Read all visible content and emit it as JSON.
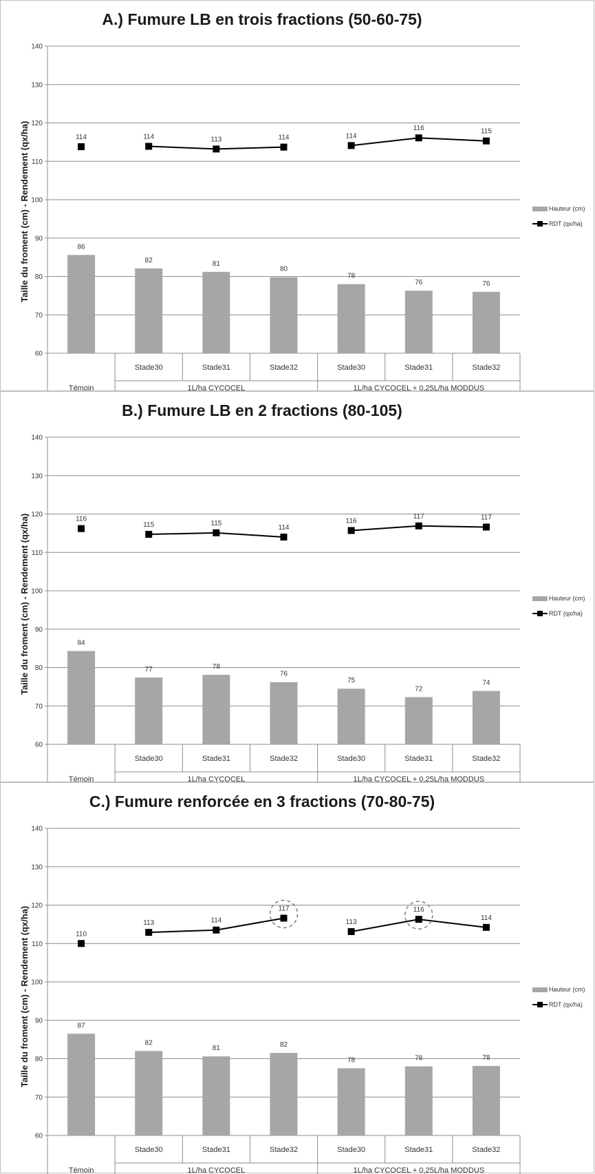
{
  "chart_data": [
    {
      "type": "bar+line",
      "title": "A.)  Fumure LB en trois fractions (50-60-75)",
      "ylabel": "Taille du froment (cm) - Rendement (qx/ha)",
      "ylim": [
        60,
        140
      ],
      "yticks": [
        "60",
        "70",
        "80",
        "90",
        "100",
        "110",
        "120",
        "130",
        "140"
      ],
      "categories": [
        "",
        "Stade30",
        "Stade31",
        "Stade32",
        "Stade30",
        "Stade31",
        "Stade32"
      ],
      "groups": [
        {
          "label": "Témoin",
          "span": 1
        },
        {
          "label": "1L/ha CYCOCEL",
          "span": 3
        },
        {
          "label": "1L/ha CYCOCEL + 0,25L/ha MODDUS",
          "span": 3
        }
      ],
      "series": [
        {
          "name": "Hauteur (cm)",
          "kind": "bar",
          "color": "#a6a6a6",
          "values": [
            85.6,
            82.1,
            81.2,
            79.8,
            78.0,
            76.3,
            76.0
          ],
          "labels": [
            "86",
            "82",
            "81",
            "80",
            "78",
            "76",
            "76"
          ]
        },
        {
          "name": "RDT (qx/ha)",
          "kind": "line",
          "color": "#000000",
          "values": [
            113.8,
            113.9,
            113.2,
            113.7,
            114.1,
            116.1,
            115.3
          ],
          "labels": [
            "114",
            "114",
            "113",
            "114",
            "114",
            "116",
            "115"
          ]
        }
      ],
      "highlight": [],
      "grid": true,
      "legend": "right"
    },
    {
      "type": "bar+line",
      "title": "B.)  Fumure LB en 2 fractions (80-105)",
      "ylabel": "Taille du froment (cm) - Rendement (qx/ha)",
      "ylim": [
        60,
        140
      ],
      "yticks": [
        "60",
        "70",
        "80",
        "90",
        "100",
        "110",
        "120",
        "130",
        "140"
      ],
      "categories": [
        "",
        "Stade30",
        "Stade31",
        "Stade32",
        "Stade30",
        "Stade31",
        "Stade32"
      ],
      "groups": [
        {
          "label": "Témoin",
          "span": 1
        },
        {
          "label": "1L/ha CYCOCEL",
          "span": 3
        },
        {
          "label": "1L/ha CYCOCEL + 0,25L/ha MODDUS",
          "span": 3
        }
      ],
      "series": [
        {
          "name": "Hauteur (cm)",
          "kind": "bar",
          "color": "#a6a6a6",
          "values": [
            84.3,
            77.4,
            78.1,
            76.2,
            74.5,
            72.3,
            73.9
          ],
          "labels": [
            "84",
            "77",
            "78",
            "76",
            "75",
            "72",
            "74"
          ]
        },
        {
          "name": "RDT (qx/ha)",
          "kind": "line",
          "color": "#000000",
          "values": [
            116.2,
            114.7,
            115.1,
            114.0,
            115.7,
            116.9,
            116.6
          ],
          "labels": [
            "116",
            "115",
            "115",
            "114",
            "116",
            "117",
            "117"
          ]
        }
      ],
      "highlight": [],
      "grid": true,
      "legend": "right"
    },
    {
      "type": "bar+line",
      "title": "C.)  Fumure renforcée en 3 fractions (70-80-75)",
      "ylabel": "Taille du froment (cm) - Rendement (qx/ha)",
      "ylim": [
        60,
        140
      ],
      "yticks": [
        "60",
        "70",
        "80",
        "90",
        "100",
        "110",
        "120",
        "130",
        "140"
      ],
      "categories": [
        "",
        "Stade30",
        "Stade31",
        "Stade32",
        "Stade30",
        "Stade31",
        "Stade32"
      ],
      "groups": [
        {
          "label": "Témoin",
          "span": 1
        },
        {
          "label": "1L/ha CYCOCEL",
          "span": 3
        },
        {
          "label": "1L/ha CYCOCEL + 0,25L/ha MODDUS",
          "span": 3
        }
      ],
      "series": [
        {
          "name": "Hauteur (cm)",
          "kind": "bar",
          "color": "#a6a6a6",
          "values": [
            86.5,
            82.0,
            80.6,
            81.5,
            77.5,
            78.0,
            78.1
          ],
          "labels": [
            "87",
            "82",
            "81",
            "82",
            "78",
            "78",
            "78"
          ]
        },
        {
          "name": "RDT (qx/ha)",
          "kind": "line",
          "color": "#000000",
          "values": [
            110.0,
            112.9,
            113.5,
            116.6,
            113.1,
            116.3,
            114.2
          ],
          "labels": [
            "110",
            "113",
            "114",
            "117",
            "113",
            "116",
            "114"
          ]
        }
      ],
      "highlight": [
        3,
        5
      ],
      "grid": true,
      "legend": "right"
    }
  ]
}
